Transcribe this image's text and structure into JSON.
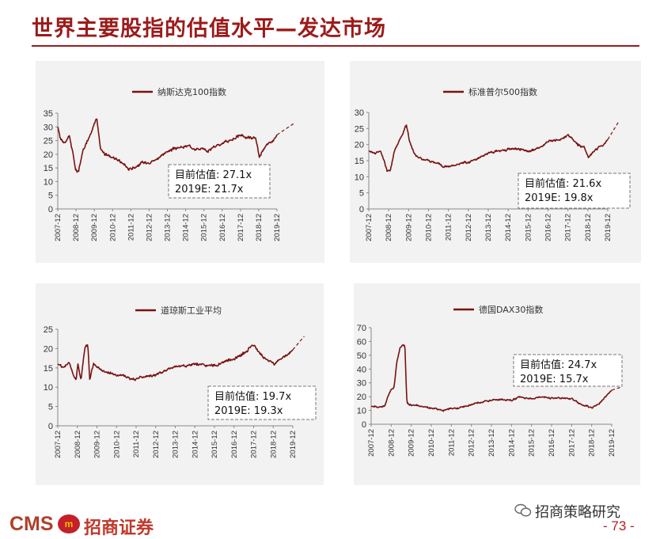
{
  "page": {
    "title": "世界主要股指的估值水平—发达市场",
    "footer_brand": "CMS",
    "footer_company": "招商证券",
    "wechat_label": "招商策略研究",
    "page_number": "- 73 -"
  },
  "colors": {
    "accent": "#9b1b1b",
    "series": "#7a1111",
    "panel_bg": "#f2f2f2"
  },
  "chart_data": [
    {
      "type": "line",
      "title": "纳斯达克100指数",
      "ylim": [
        0,
        35
      ],
      "yticks": [
        0,
        5,
        10,
        15,
        20,
        25,
        30,
        35
      ],
      "x_range": [
        "2007-12",
        "2019-12"
      ],
      "x_tick_labels": [
        "2007-12",
        "2008-12",
        "2009-12",
        "2010-12",
        "2011-12",
        "2012-12",
        "2013-12",
        "2014-12",
        "2015-12",
        "2016-12",
        "2017-12",
        "2018-12",
        "2019-12"
      ],
      "series": [
        {
          "anchors": [
            [
              2007.92,
              30
            ],
            [
              2008.05,
              26
            ],
            [
              2008.3,
              24
            ],
            [
              2008.55,
              27
            ],
            [
              2008.75,
              20
            ],
            [
              2008.9,
              14
            ],
            [
              2009.05,
              13.5
            ],
            [
              2009.25,
              20
            ],
            [
              2009.45,
              24
            ],
            [
              2009.7,
              27
            ],
            [
              2009.9,
              31
            ],
            [
              2010.05,
              33
            ],
            [
              2010.25,
              22
            ],
            [
              2010.5,
              20
            ],
            [
              2010.9,
              19
            ],
            [
              2011.3,
              17.5
            ],
            [
              2011.6,
              16
            ],
            [
              2011.8,
              14.5
            ],
            [
              2012.2,
              15.5
            ],
            [
              2012.6,
              17
            ],
            [
              2012.95,
              17
            ],
            [
              2013.4,
              18.5
            ],
            [
              2013.9,
              21
            ],
            [
              2014.3,
              22
            ],
            [
              2014.7,
              22.5
            ],
            [
              2015.1,
              23
            ],
            [
              2015.5,
              22
            ],
            [
              2015.8,
              22
            ],
            [
              2016.1,
              21
            ],
            [
              2016.5,
              23
            ],
            [
              2016.95,
              24
            ],
            [
              2017.5,
              25.5
            ],
            [
              2017.95,
              27
            ],
            [
              2018.3,
              26
            ],
            [
              2018.75,
              26
            ],
            [
              2018.95,
              19
            ],
            [
              2019.2,
              22
            ],
            [
              2019.5,
              24
            ],
            [
              2019.75,
              25
            ],
            [
              2019.92,
              27.1
            ]
          ],
          "noise": 0.55
        }
      ],
      "projection_end": [
        2020.9,
        31.5
      ],
      "annotation": {
        "line1": "目前估值: 27.1x",
        "line2": "2019E: 21.7x"
      }
    },
    {
      "type": "line",
      "title": "标准普尔500指数",
      "ylim": [
        0,
        30
      ],
      "yticks": [
        0,
        5,
        10,
        15,
        20,
        25,
        30
      ],
      "x_range": [
        "2007-12",
        "2019-12"
      ],
      "x_tick_labels": [
        "2007-12",
        "2008-12",
        "2009-12",
        "2010-12",
        "2011-12",
        "2012-12",
        "2013-12",
        "2014-12",
        "2015-12",
        "2016-12",
        "2017-12",
        "2018-12",
        "2019-12"
      ],
      "series": [
        {
          "anchors": [
            [
              2007.92,
              18
            ],
            [
              2008.2,
              17.5
            ],
            [
              2008.5,
              18
            ],
            [
              2008.7,
              15
            ],
            [
              2008.85,
              11.5
            ],
            [
              2009.0,
              12
            ],
            [
              2009.2,
              18
            ],
            [
              2009.5,
              22
            ],
            [
              2009.8,
              26
            ],
            [
              2009.95,
              21.5
            ],
            [
              2010.2,
              17
            ],
            [
              2010.6,
              15.5
            ],
            [
              2010.95,
              15
            ],
            [
              2011.3,
              14.5
            ],
            [
              2011.7,
              13
            ],
            [
              2012.2,
              13.5
            ],
            [
              2012.6,
              14.5
            ],
            [
              2012.95,
              14.5
            ],
            [
              2013.5,
              16
            ],
            [
              2013.95,
              17.5
            ],
            [
              2014.5,
              18
            ],
            [
              2014.95,
              18.5
            ],
            [
              2015.5,
              18.5
            ],
            [
              2015.9,
              18
            ],
            [
              2016.3,
              18.5
            ],
            [
              2016.7,
              20
            ],
            [
              2016.95,
              21
            ],
            [
              2017.5,
              21.5
            ],
            [
              2017.95,
              23
            ],
            [
              2018.4,
              20
            ],
            [
              2018.75,
              19
            ],
            [
              2018.95,
              16
            ],
            [
              2019.3,
              18.5
            ],
            [
              2019.7,
              20
            ],
            [
              2019.92,
              21.6
            ]
          ],
          "noise": 0.4
        }
      ],
      "projection_end": [
        2020.5,
        27.5
      ],
      "annotation": {
        "line1": "目前估值: 21.6x",
        "line2": "2019E: 19.8x"
      }
    },
    {
      "type": "line",
      "title": "道琼斯工业平均",
      "ylim": [
        0,
        25
      ],
      "yticks": [
        0,
        5,
        10,
        15,
        20,
        25
      ],
      "x_range": [
        "2007-12",
        "2019-12"
      ],
      "x_tick_labels": [
        "2007-12",
        "2008-12",
        "2009-12",
        "2010-12",
        "2011-12",
        "2012-12",
        "2013-12",
        "2014-12",
        "2015-12",
        "2016-12",
        "2017-12",
        "2018-12",
        "2019-12"
      ],
      "series": [
        {
          "anchors": [
            [
              2007.92,
              16
            ],
            [
              2008.2,
              15
            ],
            [
              2008.5,
              16.5
            ],
            [
              2008.7,
              13
            ],
            [
              2008.85,
              12
            ],
            [
              2008.95,
              16
            ],
            [
              2009.1,
              12
            ],
            [
              2009.3,
              20
            ],
            [
              2009.45,
              21
            ],
            [
              2009.55,
              12
            ],
            [
              2009.75,
              16
            ],
            [
              2009.95,
              15
            ],
            [
              2010.3,
              14
            ],
            [
              2010.7,
              13.5
            ],
            [
              2010.95,
              13
            ],
            [
              2011.3,
              13
            ],
            [
              2011.7,
              12
            ],
            [
              2012.2,
              12.5
            ],
            [
              2012.7,
              13
            ],
            [
              2012.95,
              13
            ],
            [
              2013.5,
              14.5
            ],
            [
              2013.95,
              15.5
            ],
            [
              2014.5,
              15.5
            ],
            [
              2014.95,
              16
            ],
            [
              2015.5,
              15.5
            ],
            [
              2015.95,
              15.5
            ],
            [
              2016.4,
              16.5
            ],
            [
              2016.95,
              17.5
            ],
            [
              2017.5,
              19
            ],
            [
              2017.85,
              21
            ],
            [
              2018.2,
              19
            ],
            [
              2018.6,
              17
            ],
            [
              2018.95,
              16
            ],
            [
              2019.3,
              17.5
            ],
            [
              2019.7,
              18.5
            ],
            [
              2019.92,
              19.7
            ]
          ],
          "noise": 0.4
        }
      ],
      "projection_end": [
        2020.5,
        23.2
      ],
      "annotation": {
        "line1": "目前估值: 19.7x",
        "line2": "2019E: 19.3x"
      }
    },
    {
      "type": "line",
      "title": "德国DAX30指数",
      "ylim": [
        0,
        70
      ],
      "yticks": [
        0,
        10,
        20,
        30,
        40,
        50,
        60,
        70
      ],
      "x_range": [
        "2007-12",
        "2019-12"
      ],
      "x_tick_labels": [
        "2007-12",
        "2008-12",
        "2009-12",
        "2010-12",
        "2011-12",
        "2012-12",
        "2013-12",
        "2014-12",
        "2015-12",
        "2016-12",
        "2017-12",
        "2018-12",
        "2019-12"
      ],
      "series": [
        {
          "anchors": [
            [
              2007.92,
              13
            ],
            [
              2008.3,
              12.5
            ],
            [
              2008.6,
              13
            ],
            [
              2008.75,
              20
            ],
            [
              2008.9,
              25
            ],
            [
              2009.05,
              26
            ],
            [
              2009.2,
              45
            ],
            [
              2009.35,
              55
            ],
            [
              2009.5,
              58
            ],
            [
              2009.6,
              57
            ],
            [
              2009.7,
              15
            ],
            [
              2009.95,
              14
            ],
            [
              2010.5,
              13
            ],
            [
              2010.95,
              12
            ],
            [
              2011.2,
              11
            ],
            [
              2011.5,
              10
            ],
            [
              2011.8,
              11
            ],
            [
              2012.2,
              11.5
            ],
            [
              2012.6,
              13
            ],
            [
              2012.95,
              14.5
            ],
            [
              2013.5,
              16
            ],
            [
              2013.95,
              17.5
            ],
            [
              2014.5,
              18
            ],
            [
              2014.95,
              17.5
            ],
            [
              2015.3,
              20
            ],
            [
              2015.6,
              19
            ],
            [
              2015.95,
              18.5
            ],
            [
              2016.4,
              20
            ],
            [
              2016.95,
              19
            ],
            [
              2017.5,
              19
            ],
            [
              2017.95,
              18
            ],
            [
              2018.3,
              15
            ],
            [
              2018.7,
              13
            ],
            [
              2018.95,
              12
            ],
            [
              2019.3,
              15
            ],
            [
              2019.6,
              20
            ],
            [
              2019.92,
              24.7
            ]
          ],
          "noise": 0.7
        }
      ],
      "projection_end": [
        2020.4,
        27
      ],
      "annotation": {
        "line1": "目前估值: 24.7x",
        "line2": "2019E: 15.7x"
      }
    }
  ]
}
